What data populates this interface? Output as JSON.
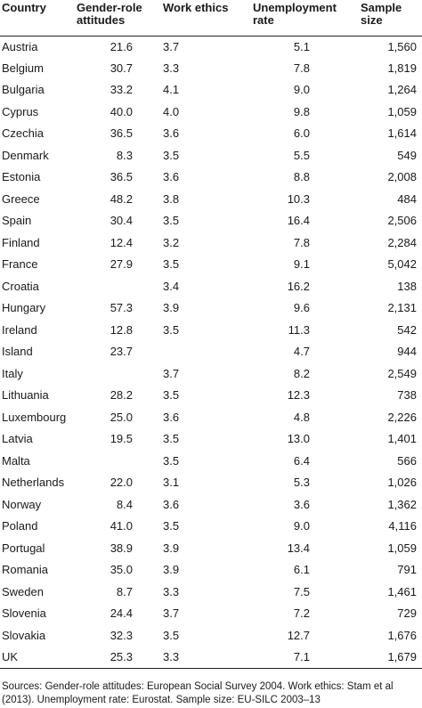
{
  "table": {
    "headers": {
      "country": "Country",
      "gender": "Gender-role attitudes",
      "work": "Work ethics",
      "unemployment": "Unemployment rate",
      "sample": "Sample size"
    },
    "rows": [
      {
        "country": "Austria",
        "gender": "21.6",
        "work": "3.7",
        "unemployment": "5.1",
        "sample": "1,560"
      },
      {
        "country": "Belgium",
        "gender": "30.7",
        "work": "3.3",
        "unemployment": "7.8",
        "sample": "1,819"
      },
      {
        "country": "Bulgaria",
        "gender": "33.2",
        "work": "4.1",
        "unemployment": "9.0",
        "sample": "1,264"
      },
      {
        "country": "Cyprus",
        "gender": "40.0",
        "work": "4.0",
        "unemployment": "9.8",
        "sample": "1,059"
      },
      {
        "country": "Czechia",
        "gender": "36.5",
        "work": "3.6",
        "unemployment": "6.0",
        "sample": "1,614"
      },
      {
        "country": "Denmark",
        "gender": "8.3",
        "work": "3.5",
        "unemployment": "5.5",
        "sample": "549"
      },
      {
        "country": "Estonia",
        "gender": "36.5",
        "work": "3.6",
        "unemployment": "8.8",
        "sample": "2,008"
      },
      {
        "country": "Greece",
        "gender": "48.2",
        "work": "3.8",
        "unemployment": "10.3",
        "sample": "484"
      },
      {
        "country": "Spain",
        "gender": "30.4",
        "work": "3.5",
        "unemployment": "16.4",
        "sample": "2,506"
      },
      {
        "country": "Finland",
        "gender": "12.4",
        "work": "3.2",
        "unemployment": "7.8",
        "sample": "2,284"
      },
      {
        "country": "France",
        "gender": "27.9",
        "work": "3.5",
        "unemployment": "9.1",
        "sample": "5,042"
      },
      {
        "country": "Croatia",
        "gender": "",
        "work": "3.4",
        "unemployment": "16.2",
        "sample": "138"
      },
      {
        "country": "Hungary",
        "gender": "57.3",
        "work": "3.9",
        "unemployment": "9.6",
        "sample": "2,131"
      },
      {
        "country": "Ireland",
        "gender": "12.8",
        "work": "3.5",
        "unemployment": "11.3",
        "sample": "542"
      },
      {
        "country": "Island",
        "gender": "23.7",
        "work": "",
        "unemployment": "4.7",
        "sample": "944"
      },
      {
        "country": "Italy",
        "gender": "",
        "work": "3.7",
        "unemployment": "8.2",
        "sample": "2,549"
      },
      {
        "country": "Lithuania",
        "gender": "28.2",
        "work": "3.5",
        "unemployment": "12.3",
        "sample": "738"
      },
      {
        "country": "Luxembourg",
        "gender": "25.0",
        "work": "3.6",
        "unemployment": "4.8",
        "sample": "2,226"
      },
      {
        "country": "Latvia",
        "gender": "19.5",
        "work": "3.5",
        "unemployment": "13.0",
        "sample": "1,401"
      },
      {
        "country": "Malta",
        "gender": "",
        "work": "3.5",
        "unemployment": "6.4",
        "sample": "566"
      },
      {
        "country": "Netherlands",
        "gender": "22.0",
        "work": "3.1",
        "unemployment": "5.3",
        "sample": "1,026"
      },
      {
        "country": "Norway",
        "gender": "8.4",
        "work": "3.6",
        "unemployment": "3.6",
        "sample": "1,362"
      },
      {
        "country": "Poland",
        "gender": "41.0",
        "work": "3.5",
        "unemployment": "9.0",
        "sample": "4,116"
      },
      {
        "country": "Portugal",
        "gender": "38.9",
        "work": "3.9",
        "unemployment": "13.4",
        "sample": "1,059"
      },
      {
        "country": "Romania",
        "gender": "35.0",
        "work": "3.9",
        "unemployment": "6.1",
        "sample": "791"
      },
      {
        "country": "Sweden",
        "gender": "8.7",
        "work": "3.3",
        "unemployment": "7.5",
        "sample": "1,461"
      },
      {
        "country": "Slovenia",
        "gender": "24.4",
        "work": "3.7",
        "unemployment": "7.2",
        "sample": "729"
      },
      {
        "country": "Slovakia",
        "gender": "32.3",
        "work": "3.5",
        "unemployment": "12.7",
        "sample": "1,676"
      },
      {
        "country": "UK",
        "gender": "25.3",
        "work": "3.3",
        "unemployment": "7.1",
        "sample": "1,679"
      }
    ]
  },
  "source_note": "Sources: Gender-role attitudes: European Social Survey 2004. Work ethics: Stam et al (2013). Unemployment rate: Eurostat. Sample size: EU-SILC 2003–13"
}
